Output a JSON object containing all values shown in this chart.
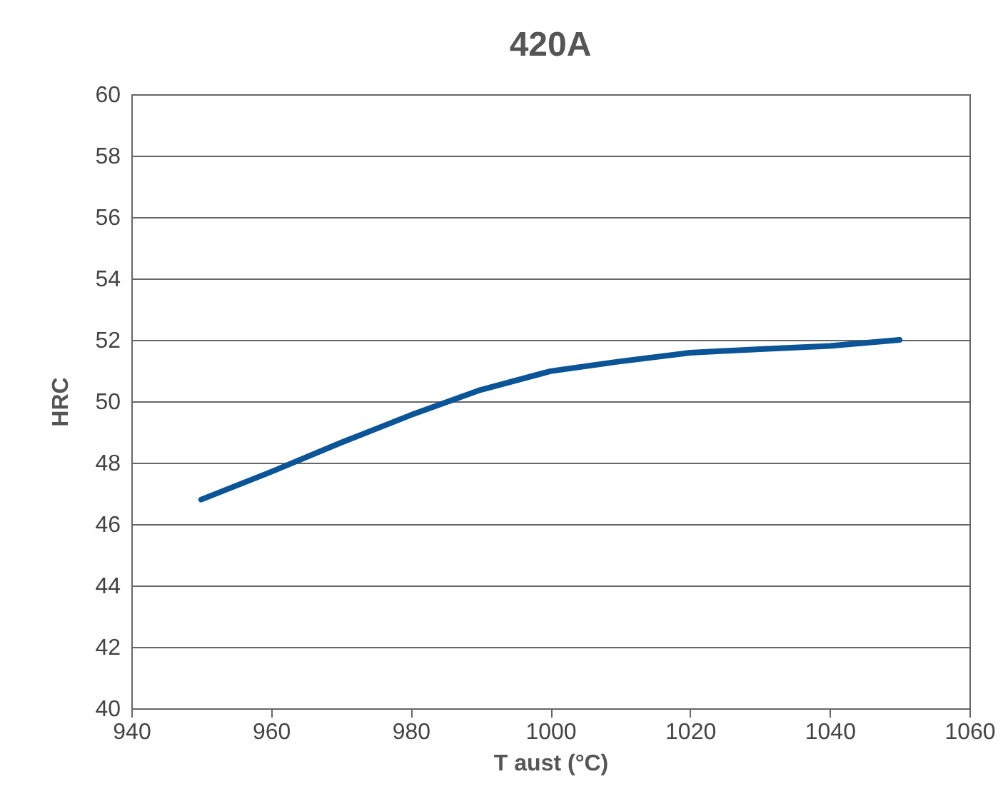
{
  "chart_data": {
    "type": "line",
    "title": "420A",
    "xlabel": "T aust (°C)",
    "ylabel": "HRC",
    "x": [
      950,
      960,
      970,
      980,
      990,
      1000,
      1010,
      1020,
      1030,
      1040,
      1050
    ],
    "series": [
      {
        "color": "#0b5497",
        "values": [
          46.8,
          47.7,
          48.65,
          49.55,
          50.37,
          50.98,
          51.3,
          51.58,
          51.7,
          51.8,
          52.0
        ]
      }
    ],
    "xlim": [
      940,
      1060
    ],
    "xticks": [
      940,
      960,
      980,
      1000,
      1020,
      1040,
      1060
    ],
    "ylim": [
      40,
      60
    ],
    "yticks": [
      40,
      42,
      44,
      46,
      48,
      50,
      52,
      54,
      56,
      58,
      60
    ],
    "grid": "y",
    "legend": false,
    "marker": "none",
    "line_style": "solid"
  }
}
